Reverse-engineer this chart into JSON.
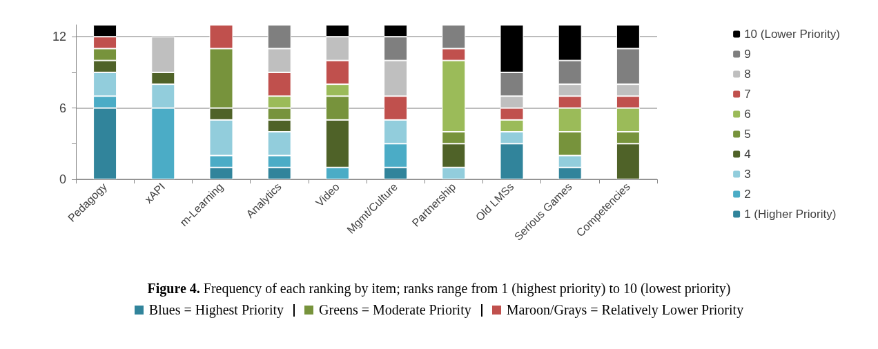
{
  "chart_data": {
    "type": "bar",
    "stacked": true,
    "title": "Figure 4. Frequency of each ranking by item; ranks range from 1 (highest priority) to 10 (lowest priority)",
    "annotations": [
      "Blues = Highest Priority",
      "Greens = Moderate Priority",
      "Maroon/Grays = Relatively Lower Priority"
    ],
    "categories": [
      "Pedagogy",
      "xAPI",
      "m-Learning",
      "Analytics",
      "Video",
      "Mgmt/Culture",
      "Partnership",
      "Old LMSs",
      "Serious Games",
      "Competencies"
    ],
    "series": [
      {
        "name": "1 (Higher Priority)",
        "color": "#31849b",
        "values": [
          6,
          0,
          1,
          1,
          0,
          1,
          0,
          3,
          1,
          0
        ]
      },
      {
        "name": "2",
        "color": "#4bacc6",
        "values": [
          1,
          6,
          1,
          1,
          1,
          2,
          0,
          0,
          0,
          0
        ]
      },
      {
        "name": "3",
        "color": "#92cddc",
        "values": [
          2,
          2,
          3,
          2,
          0,
          2,
          1,
          1,
          1,
          0
        ]
      },
      {
        "name": "4",
        "color": "#4f6228",
        "values": [
          1,
          1,
          1,
          1,
          4,
          0,
          2,
          0,
          0,
          3
        ]
      },
      {
        "name": "5",
        "color": "#77933c",
        "values": [
          1,
          0,
          5,
          1,
          2,
          0,
          1,
          0,
          2,
          1
        ]
      },
      {
        "name": "6",
        "color": "#9bbb59",
        "values": [
          0,
          0,
          0,
          1,
          1,
          0,
          6,
          1,
          2,
          2
        ]
      },
      {
        "name": "7",
        "color": "#c0504d",
        "values": [
          1,
          0,
          2,
          2,
          2,
          2,
          1,
          1,
          1,
          1
        ]
      },
      {
        "name": "8",
        "color": "#bfbfbf",
        "values": [
          0,
          3,
          0,
          2,
          2,
          3,
          0,
          1,
          1,
          1
        ]
      },
      {
        "name": "9",
        "color": "#7f7f7f",
        "values": [
          0,
          0,
          0,
          2,
          0,
          2,
          2,
          2,
          2,
          3
        ]
      },
      {
        "name": "10 (Lower Priority)",
        "color": "#000000",
        "values": [
          1,
          0,
          0,
          0,
          1,
          1,
          0,
          4,
          3,
          2
        ]
      }
    ],
    "ylim": [
      0,
      13
    ],
    "yticks": [
      0,
      {
        "value": 3,
        "label": null
      },
      6,
      {
        "value": 9,
        "label": null
      },
      12
    ],
    "grid": "y",
    "legend": "right"
  }
}
